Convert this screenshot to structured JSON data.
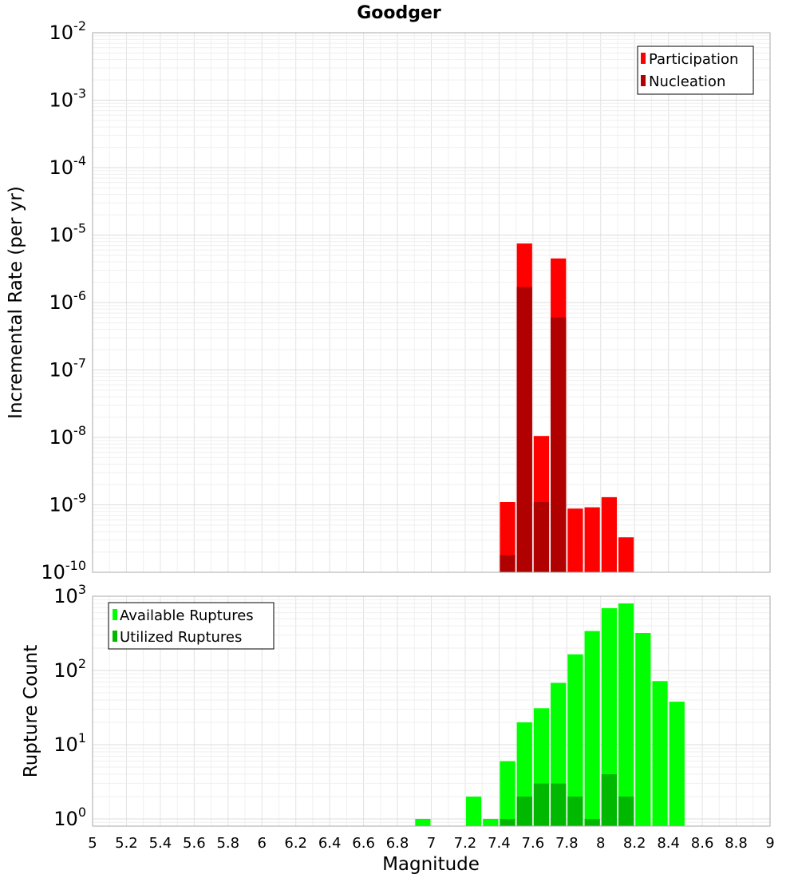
{
  "chart_data": [
    {
      "type": "bar",
      "panel": "top",
      "title": "Goodger",
      "xlabel": "",
      "ylabel": "Incremental Rate (per yr)",
      "yscale": "log",
      "xlim": [
        5,
        9
      ],
      "ylim": [
        1e-10,
        0.01
      ],
      "ytick_exponents": [
        -10,
        -9,
        -8,
        -7,
        -6,
        -5,
        -4,
        -3,
        -2
      ],
      "grid": true,
      "legend": "top-right",
      "bar_width": 0.1,
      "series": [
        {
          "name": "Participation",
          "color": "#ff0000",
          "x": [
            7.45,
            7.55,
            7.65,
            7.75,
            7.85,
            7.95,
            8.05,
            8.15
          ],
          "values": [
            1.1e-09,
            7.5e-06,
            1.05e-08,
            4.5e-06,
            8.8e-10,
            9.2e-10,
            1.3e-09,
            3.3e-10
          ]
        },
        {
          "name": "Nucleation",
          "color": "#b00000",
          "x": [
            7.45,
            7.55,
            7.65,
            7.75
          ],
          "values": [
            1.8e-10,
            1.7e-06,
            1.1e-09,
            6e-07
          ]
        }
      ]
    },
    {
      "type": "bar",
      "panel": "bottom",
      "title": "",
      "xlabel": "Magnitude",
      "ylabel": "Rupture Count",
      "yscale": "log",
      "xlim": [
        5,
        9
      ],
      "ylim": [
        0.8,
        1000
      ],
      "ytick_exponents": [
        0,
        1,
        2,
        3
      ],
      "xticks": [
        "5",
        "5.2",
        "5.4",
        "5.6",
        "5.8",
        "6",
        "6.2",
        "6.4",
        "6.6",
        "6.8",
        "7",
        "7.2",
        "7.4",
        "7.6",
        "7.8",
        "8",
        "8.2",
        "8.4",
        "8.6",
        "8.8",
        "9"
      ],
      "grid": true,
      "legend": "top-left",
      "bar_width": 0.1,
      "series": [
        {
          "name": "Available Ruptures",
          "color": "#00ff00",
          "x": [
            6.95,
            7.25,
            7.35,
            7.45,
            7.55,
            7.65,
            7.75,
            7.85,
            7.95,
            8.05,
            8.15,
            8.25,
            8.35,
            8.45
          ],
          "values": [
            1,
            2,
            1,
            6,
            20,
            31,
            68,
            165,
            340,
            690,
            800,
            320,
            72,
            38
          ]
        },
        {
          "name": "Utilized Ruptures",
          "color": "#00b800",
          "x": [
            7.45,
            7.55,
            7.65,
            7.75,
            7.85,
            7.95,
            8.05,
            8.15
          ],
          "values": [
            1,
            2,
            3,
            3,
            2,
            1,
            4,
            2
          ]
        }
      ]
    }
  ]
}
